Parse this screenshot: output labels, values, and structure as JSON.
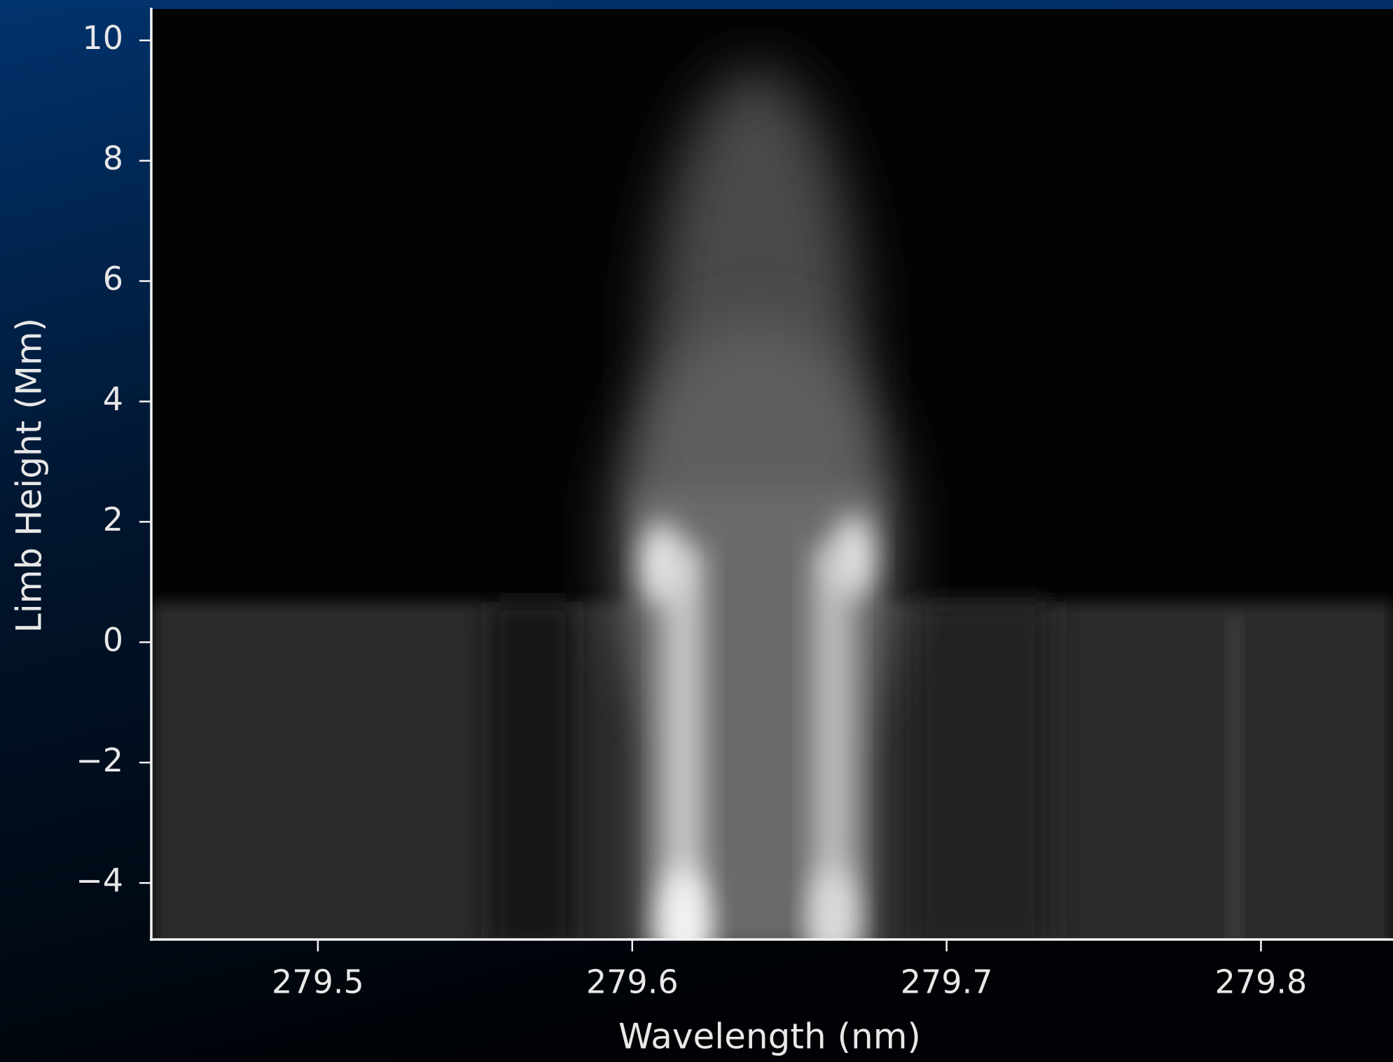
{
  "chart_data": {
    "type": "image",
    "xlabel": "Wavelength (nm)",
    "ylabel": "Limb Height (Mm)",
    "xlim": [
      279.447,
      279.842
    ],
    "ylim": [
      -4.94,
      10.52
    ],
    "xticks": [
      279.5,
      279.6,
      279.7,
      279.8
    ],
    "yticks": [
      {
        "value": -4,
        "label": "−4"
      },
      {
        "value": -2,
        "label": "−2"
      },
      0,
      2,
      4,
      6,
      8,
      10
    ]
  }
}
